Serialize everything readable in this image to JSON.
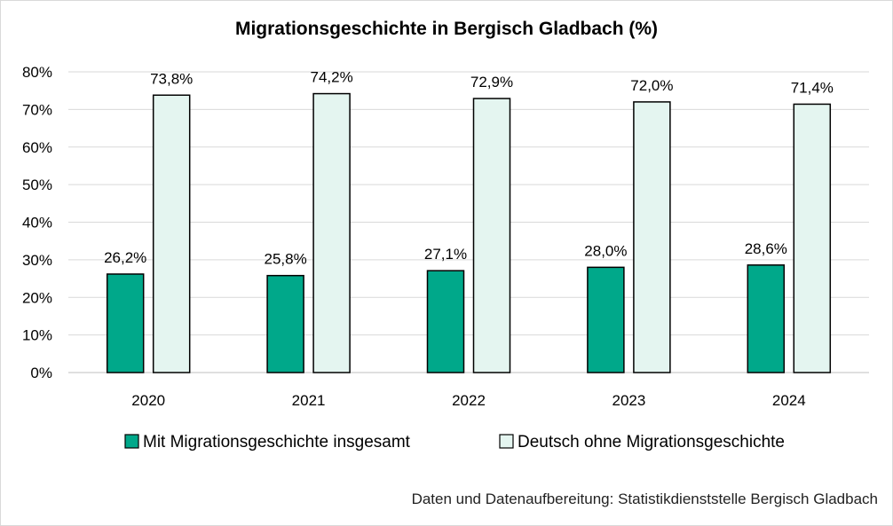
{
  "chart_data": {
    "type": "bar",
    "title": "Migrationsgeschichte in Bergisch Gladbach (%)",
    "categories": [
      "2020",
      "2021",
      "2022",
      "2023",
      "2024"
    ],
    "series": [
      {
        "name": "Mit Migrationsgeschichte insgesamt",
        "values": [
          26.2,
          25.8,
          27.1,
          28.0,
          28.6
        ],
        "labels": [
          "26,2%",
          "25,8%",
          "27,1%",
          "28,0%",
          "28,6%"
        ],
        "color": "#00a88a"
      },
      {
        "name": "Deutsch ohne Migrationsgeschichte",
        "values": [
          73.8,
          74.2,
          72.9,
          72.0,
          71.4
        ],
        "labels": [
          "73,8%",
          "74,2%",
          "72,9%",
          "72,0%",
          "71,4%"
        ],
        "color": "#e4f5f0"
      }
    ],
    "yticks": [
      "0%",
      "10%",
      "20%",
      "30%",
      "40%",
      "50%",
      "60%",
      "70%",
      "80%"
    ],
    "ylim": [
      0,
      80
    ],
    "grid": true,
    "legend": "bottom",
    "source": "Daten und Datenaufbereitung: Statistikdienststelle Bergisch Gladbach"
  }
}
